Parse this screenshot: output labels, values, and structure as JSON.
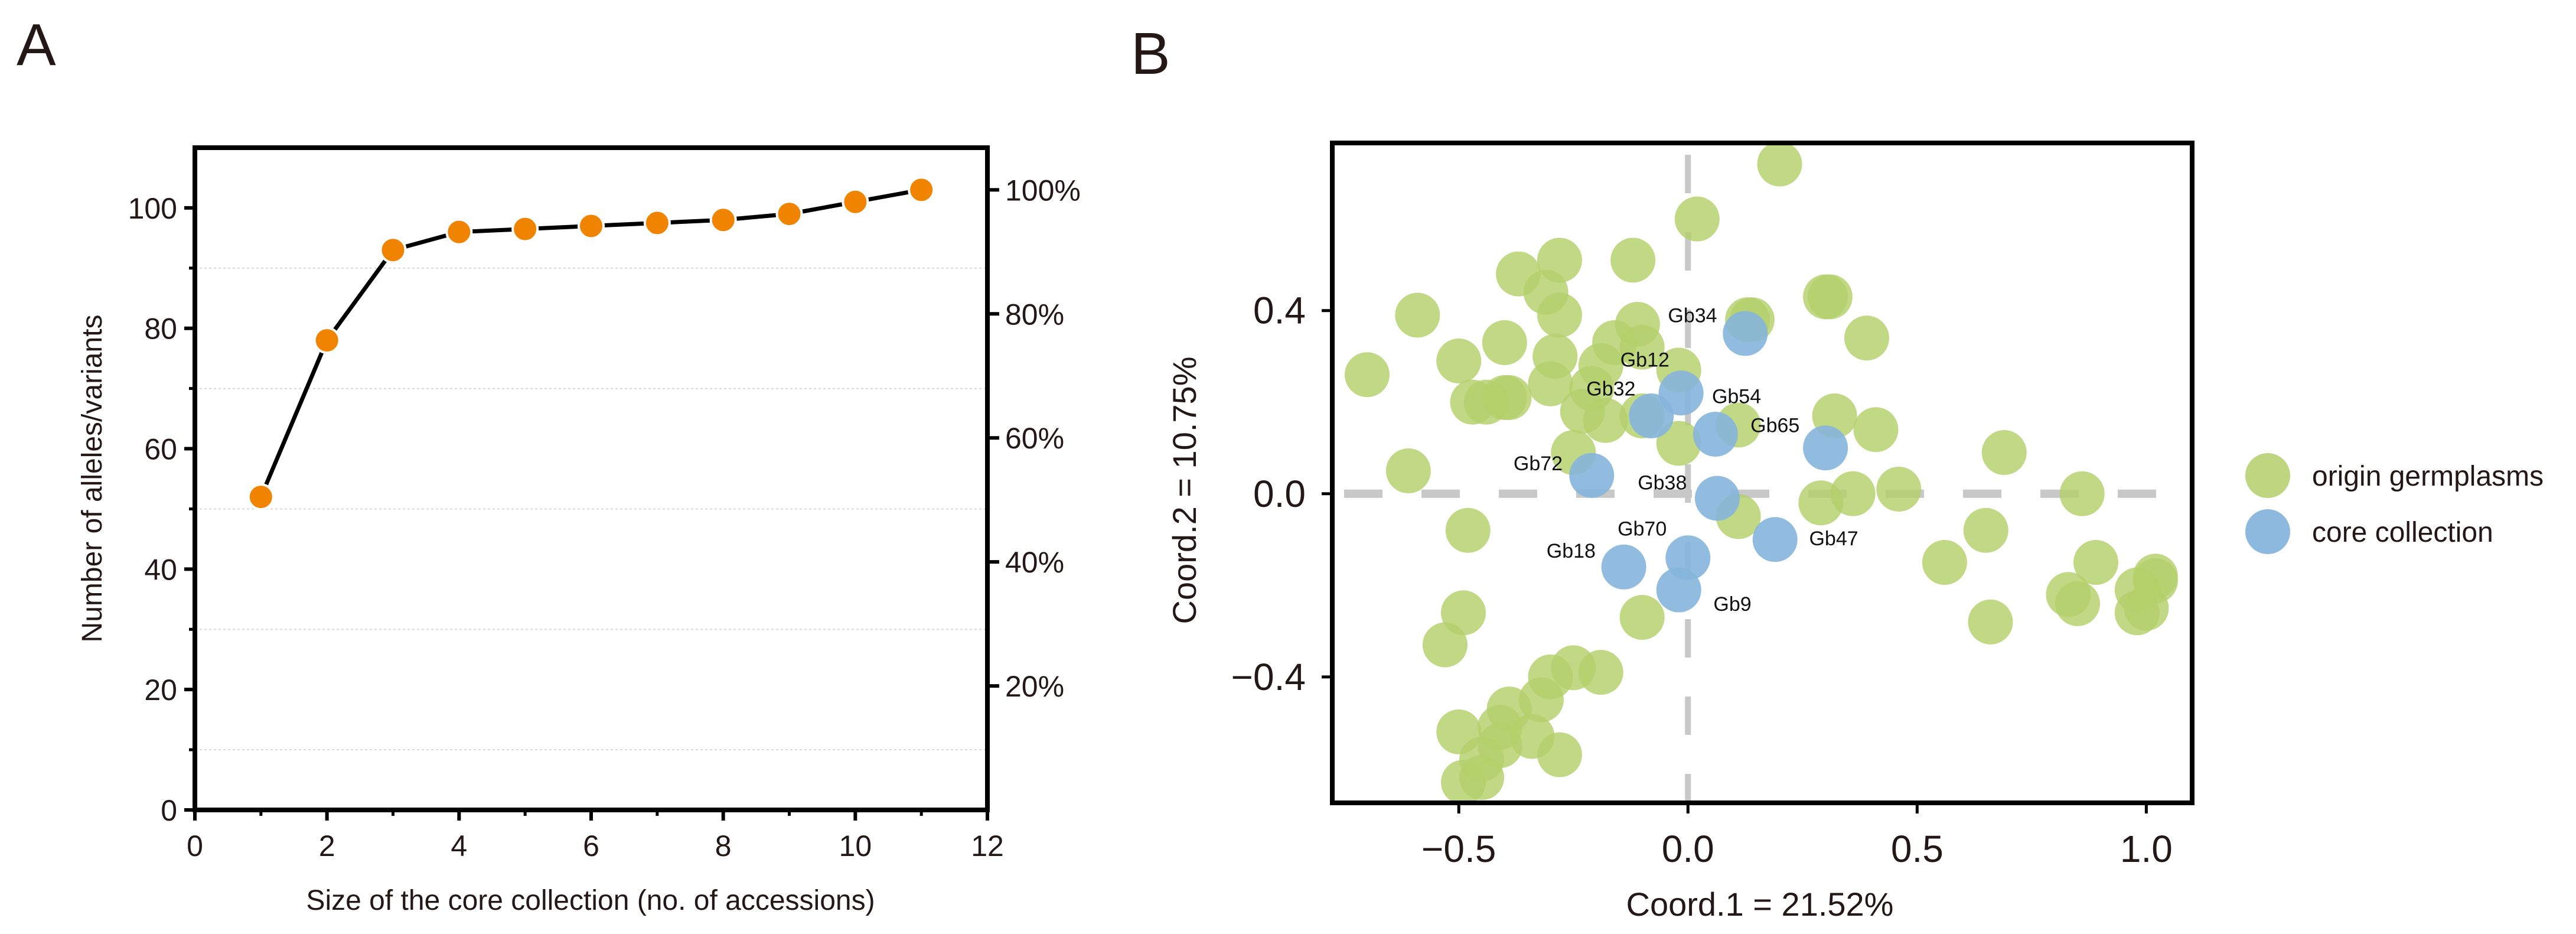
{
  "chart_data": [
    {
      "panel": "A",
      "type": "line",
      "xlabel": "Size of the core collection (no. of accessions)",
      "ylabel": "Number of alleles/variants",
      "xlim": [
        0,
        12
      ],
      "ylim": [
        0,
        110
      ],
      "x_ticks": [
        0,
        2,
        4,
        6,
        8,
        10,
        12
      ],
      "y_ticks": [
        0,
        20,
        40,
        60,
        80,
        100
      ],
      "y2_ticks": [
        "20%",
        "40%",
        "60%",
        "80%",
        "100%"
      ],
      "y2_reference_max": 103,
      "y2_values": [
        0.2,
        0.4,
        0.6,
        0.8,
        1.0
      ],
      "gridlines_y": [
        10,
        30,
        50,
        70,
        90
      ],
      "x": [
        1,
        2,
        3,
        4,
        5,
        6,
        7,
        8,
        9,
        10,
        11
      ],
      "y": [
        52,
        78,
        93,
        96,
        96.5,
        97,
        97.5,
        98,
        99,
        101,
        103
      ],
      "marker_color": "#F08300",
      "line_color": "#000000"
    },
    {
      "panel": "B",
      "type": "scatter",
      "xlabel": "Coord.1 = 21.52%",
      "ylabel": "Coord.2 = 10.75%",
      "xlim": [
        -0.776,
        1.1
      ],
      "ylim": [
        -0.675,
        0.766
      ],
      "x_ticks": [
        -0.5,
        0.0,
        0.5,
        1.0
      ],
      "x_tick_labels": [
        "−0.5",
        "0.0",
        "0.5",
        "1.0"
      ],
      "y_ticks": [
        -0.4,
        0.0,
        0.4
      ],
      "y_tick_labels": [
        "−0.4",
        "0.0",
        "0.4"
      ],
      "legend_position": "right",
      "series": [
        {
          "name": "origin germplasms",
          "color": "#B3CF6A",
          "points": [
            [
              0.2,
              0.72
            ],
            [
              0.02,
              0.6
            ],
            [
              -0.12,
              0.51
            ],
            [
              -0.28,
              0.51
            ],
            [
              -0.37,
              0.48
            ],
            [
              -0.31,
              0.44
            ],
            [
              -0.59,
              0.39
            ],
            [
              -0.28,
              0.39
            ],
            [
              -0.11,
              0.37
            ],
            [
              0.13,
              0.38
            ],
            [
              0.14,
              0.38
            ],
            [
              0.3,
              0.43
            ],
            [
              0.31,
              0.43
            ],
            [
              0.39,
              0.34
            ],
            [
              -0.4,
              0.33
            ],
            [
              -0.5,
              0.29
            ],
            [
              -0.29,
              0.3
            ],
            [
              -0.16,
              0.33
            ],
            [
              -0.1,
              0.32
            ],
            [
              -0.02,
              0.27
            ],
            [
              -0.19,
              0.28
            ],
            [
              -0.7,
              0.26
            ],
            [
              -0.3,
              0.24
            ],
            [
              -0.47,
              0.2
            ],
            [
              -0.44,
              0.2
            ],
            [
              -0.4,
              0.21
            ],
            [
              -0.39,
              0.21
            ],
            [
              -0.21,
              0.23
            ],
            [
              -0.23,
              0.18
            ],
            [
              -0.18,
              0.16
            ],
            [
              -0.1,
              0.17
            ],
            [
              -0.02,
              0.11
            ],
            [
              0.11,
              0.15
            ],
            [
              0.32,
              0.17
            ],
            [
              0.41,
              0.14
            ],
            [
              -0.25,
              0.09
            ],
            [
              -0.61,
              0.05
            ],
            [
              -0.48,
              -0.08
            ],
            [
              0.11,
              -0.05
            ],
            [
              0.29,
              -0.02
            ],
            [
              0.36,
              0.0
            ],
            [
              0.46,
              0.01
            ],
            [
              0.69,
              0.09
            ],
            [
              0.86,
              0.0
            ],
            [
              0.65,
              -0.08
            ],
            [
              0.56,
              -0.15
            ],
            [
              0.89,
              -0.15
            ],
            [
              0.83,
              -0.22
            ],
            [
              0.85,
              -0.24
            ],
            [
              0.66,
              -0.28
            ],
            [
              0.98,
              -0.21
            ],
            [
              1.02,
              -0.19
            ],
            [
              1.02,
              -0.18
            ],
            [
              0.98,
              -0.26
            ],
            [
              1.0,
              -0.25
            ],
            [
              -0.49,
              -0.26
            ],
            [
              -0.53,
              -0.33
            ],
            [
              -0.1,
              -0.27
            ],
            [
              -0.19,
              -0.39
            ],
            [
              -0.25,
              -0.38
            ],
            [
              -0.3,
              -0.4
            ],
            [
              -0.32,
              -0.45
            ],
            [
              -0.39,
              -0.47
            ],
            [
              -0.41,
              -0.51
            ],
            [
              -0.34,
              -0.53
            ],
            [
              -0.5,
              -0.52
            ],
            [
              -0.28,
              -0.57
            ],
            [
              -0.41,
              -0.55
            ],
            [
              -0.45,
              -0.58
            ],
            [
              -0.45,
              -0.62
            ],
            [
              -0.49,
              -0.63
            ]
          ]
        },
        {
          "name": "core collection",
          "color": "#86B5DB",
          "points": [
            [
              0.125,
              0.35
            ],
            [
              -0.015,
              0.22
            ],
            [
              -0.08,
              0.17
            ],
            [
              0.06,
              0.13
            ],
            [
              0.3,
              0.1
            ],
            [
              -0.21,
              0.04
            ],
            [
              0.064,
              -0.01
            ],
            [
              0.19,
              -0.1
            ],
            [
              0.0,
              -0.14
            ],
            [
              -0.14,
              -0.16
            ],
            [
              -0.02,
              -0.21
            ]
          ]
        }
      ],
      "annotations": [
        {
          "text": "Gb34",
          "x": 0.01,
          "y": 0.39
        },
        {
          "text": "Gb12",
          "x": -0.094,
          "y": 0.293
        },
        {
          "text": "Gb32",
          "x": -0.168,
          "y": 0.23
        },
        {
          "text": "Gb54",
          "x": 0.106,
          "y": 0.213
        },
        {
          "text": "Gb65",
          "x": 0.19,
          "y": 0.15
        },
        {
          "text": "Gb72",
          "x": -0.327,
          "y": 0.067
        },
        {
          "text": "Gb38",
          "x": -0.056,
          "y": 0.025
        },
        {
          "text": "Gb70",
          "x": -0.1,
          "y": -0.076
        },
        {
          "text": "Gb18",
          "x": -0.255,
          "y": -0.124
        },
        {
          "text": "Gb47",
          "x": 0.318,
          "y": -0.097
        },
        {
          "text": "Gb9",
          "x": 0.097,
          "y": -0.24
        }
      ],
      "reference_lines": {
        "x": 0,
        "y": 0,
        "color": "#C8C8C8"
      }
    }
  ],
  "panels": {
    "a_label": "A",
    "b_label": "B"
  }
}
